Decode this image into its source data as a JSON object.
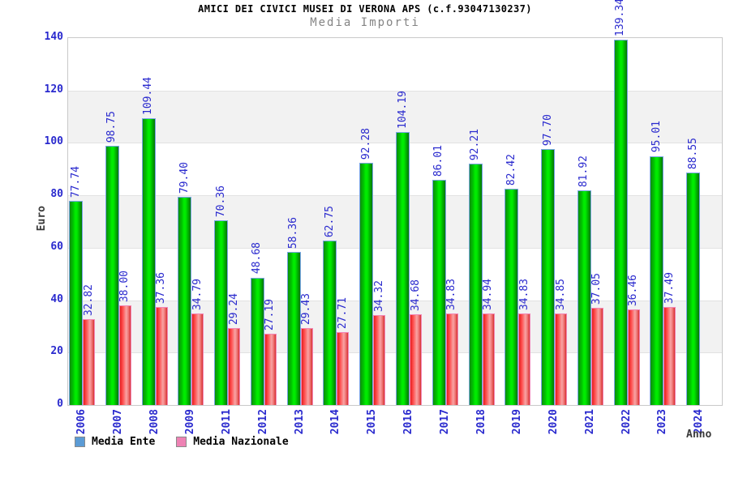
{
  "header": {
    "title": "AMICI DEI CIVICI MUSEI DI VERONA APS (c.f.93047130237)",
    "subtitle": "Media Importi"
  },
  "chart_data": {
    "type": "bar",
    "title": "AMICI DEI CIVICI MUSEI DI VERONA APS (c.f.93047130237)",
    "subtitle": "Media Importi",
    "xlabel": "Anno",
    "ylabel": "Euro",
    "ylim": [
      0,
      140
    ],
    "y_ticks": [
      0,
      20,
      40,
      60,
      80,
      100,
      120,
      140
    ],
    "grid": "alternating-horizontal-bands-every-20",
    "legend_position": "bottom-left",
    "categories": [
      "2006",
      "2007",
      "2008",
      "2009",
      "2011",
      "2012",
      "2013",
      "2014",
      "2015",
      "2016",
      "2017",
      "2018",
      "2019",
      "2020",
      "2021",
      "2022",
      "2023",
      "2024"
    ],
    "series": [
      {
        "name": "Media Ente",
        "legend_swatch_color": "#5b9bd5",
        "bar_color": "#00e000",
        "values": [
          77.74,
          98.75,
          109.44,
          79.4,
          70.36,
          48.68,
          58.36,
          62.75,
          92.28,
          104.19,
          86.01,
          92.21,
          82.42,
          97.7,
          81.92,
          139.34,
          95.01,
          88.55
        ]
      },
      {
        "name": "Media Nazionale",
        "legend_swatch_color": "#ee82b4",
        "bar_color": "#ee3333",
        "values": [
          32.82,
          38.0,
          37.36,
          34.79,
          29.24,
          27.19,
          29.43,
          27.71,
          34.32,
          34.68,
          34.83,
          34.94,
          34.83,
          34.85,
          37.05,
          36.46,
          37.49,
          null
        ]
      }
    ],
    "value_label_color": "#2a2ace",
    "tick_label_color": "#2a2ace"
  },
  "colors": {
    "band_gray": "#f2f2f2",
    "plot_border": "#c9c9c9",
    "subtitle_gray": "#848484"
  }
}
